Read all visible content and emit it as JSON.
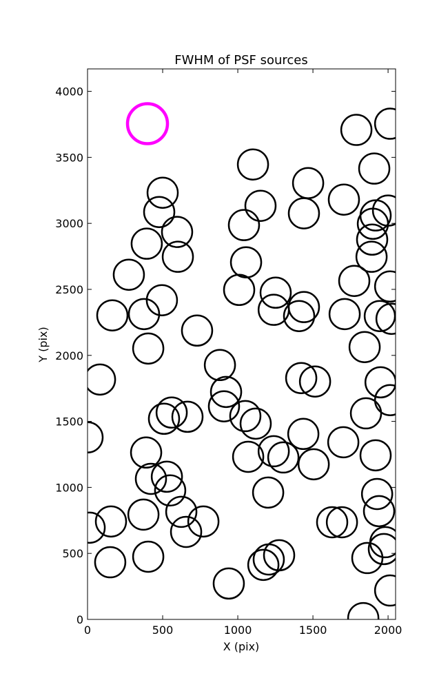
{
  "chart_data": {
    "type": "scatter",
    "title": "FWHM of PSF sources",
    "x_label": "X (pix)",
    "y_label": "Y (pix)",
    "xlim": [
      0,
      2050
    ],
    "ylim": [
      0,
      4170
    ],
    "xticks": [
      0,
      500,
      1000,
      1500,
      2000
    ],
    "yticks": [
      0,
      500,
      1000,
      1500,
      2000,
      2500,
      3000,
      3500,
      4000
    ],
    "series": [
      {
        "color": "#000000",
        "x": [
          2014,
          1789,
          1101,
          1908,
          1468,
          500,
          1706,
          1151,
          477,
          2000,
          1440,
          1917,
          596,
          1041,
          1899,
          394,
          1894,
          601,
          1890,
          1055,
          275,
          1775,
          2014,
          1009,
          1252,
          495,
          1440,
          1239,
          165,
          376,
          1408,
          1711,
          1945,
          2023,
          729,
          1844,
          404,
          881,
          83,
          1422,
          1514,
          1950,
          922,
          2014,
          908,
          560,
          1050,
          665,
          1853,
          509,
          1119,
          0,
          1436,
          1702,
          390,
          1239,
          1917,
          1069,
          1303,
          1505,
          528,
          422,
          550,
          1202,
          1927,
          624,
          372,
          1940,
          771,
          156,
          1628,
          1693,
          14,
          656,
          1982,
          1862,
          1972,
          1275,
          404,
          1206,
          1170,
          151,
          940,
          2014,
          1835
        ],
        "y": [
          3755,
          3708,
          3446,
          3415,
          3305,
          3232,
          3180,
          3133,
          3086,
          3097,
          3076,
          3060,
          2935,
          2987,
          2997,
          2846,
          2877,
          2747,
          2747,
          2705,
          2611,
          2564,
          2522,
          2496,
          2475,
          2418,
          2366,
          2345,
          2303,
          2313,
          2298,
          2313,
          2298,
          2277,
          2188,
          2063,
          2052,
          1927,
          1817,
          1828,
          1802,
          1796,
          1723,
          1661,
          1614,
          1567,
          1540,
          1535,
          1561,
          1520,
          1483,
          1379,
          1405,
          1342,
          1264,
          1274,
          1243,
          1232,
          1227,
          1175,
          1081,
          1065,
          977,
          961,
          950,
          815,
          794,
          820,
          742,
          742,
          736,
          736,
          695,
          663,
          585,
          465,
          533,
          486,
          475,
          454,
          413,
          433,
          272,
          219,
          10
        ]
      },
      {
        "color": "#ff00ff",
        "x": [
          399
        ],
        "y": [
          3755
        ]
      }
    ]
  }
}
